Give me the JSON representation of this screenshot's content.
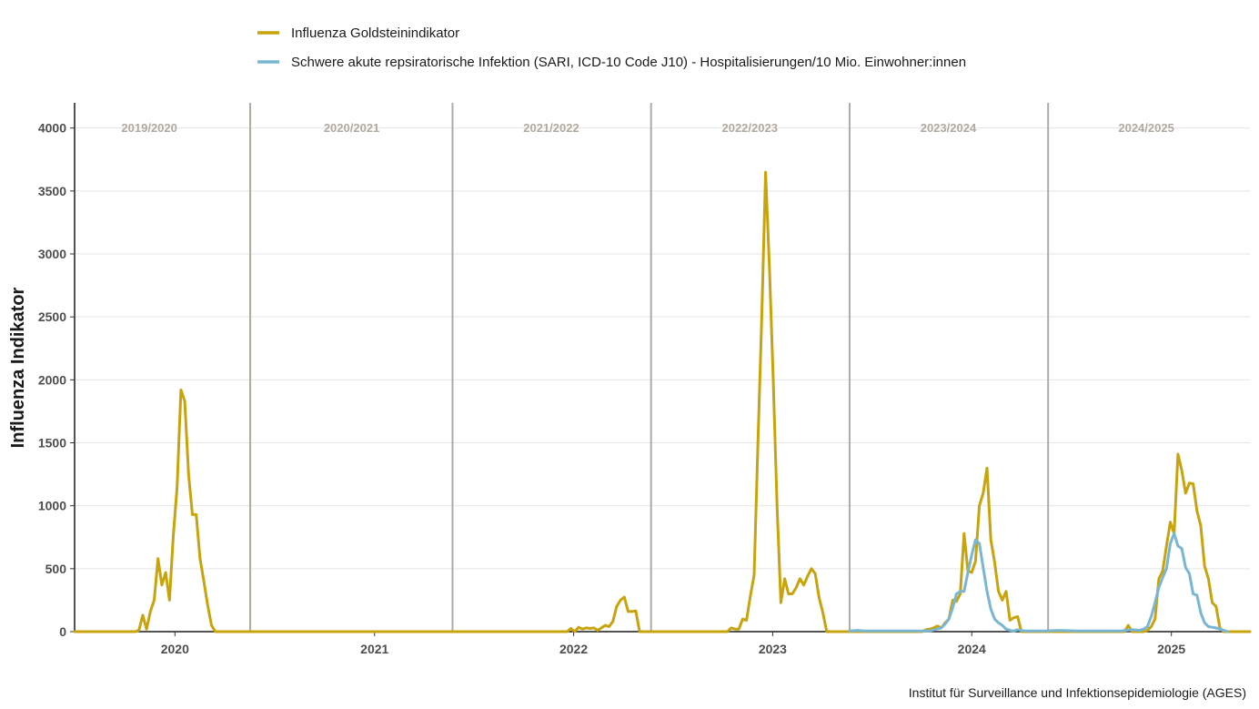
{
  "chart_data": {
    "type": "line",
    "title": "",
    "xlabel": "",
    "ylabel": "Influenza Indikator",
    "caption": "Institut für Surveillance und Infektionsepidemiologie (AGES)",
    "ylim": [
      0,
      4200
    ],
    "yticks": [
      0,
      500,
      1000,
      1500,
      2000,
      2500,
      3000,
      3500,
      4000
    ],
    "xlim": [
      "2019-07-01",
      "2025-05-25"
    ],
    "xticks": [
      {
        "date": "2020-01-01",
        "label": "2020"
      },
      {
        "date": "2021-01-01",
        "label": "2021"
      },
      {
        "date": "2022-01-01",
        "label": "2022"
      },
      {
        "date": "2023-01-01",
        "label": "2023"
      },
      {
        "date": "2024-01-01",
        "label": "2024"
      },
      {
        "date": "2025-01-01",
        "label": "2025"
      }
    ],
    "season_dividers": [
      "2020-05-18",
      "2021-05-24",
      "2022-05-23",
      "2023-05-22",
      "2024-05-20"
    ],
    "seasons": [
      {
        "label": "2019/2020",
        "date": "2019-11-15"
      },
      {
        "label": "2020/2021",
        "date": "2020-11-20"
      },
      {
        "label": "2021/2022",
        "date": "2021-11-21"
      },
      {
        "label": "2022/2023",
        "date": "2022-11-20"
      },
      {
        "label": "2023/2024",
        "date": "2023-11-19"
      },
      {
        "label": "2024/2025",
        "date": "2024-11-16"
      }
    ],
    "legend_position": "top",
    "grid": true,
    "series": [
      {
        "name": "Influenza Goldsteinindikator",
        "color": "#c9a30c",
        "points": [
          [
            "2019-07-01",
            0
          ],
          [
            "2019-10-20",
            0
          ],
          [
            "2019-10-27",
            10
          ],
          [
            "2019-11-03",
            130
          ],
          [
            "2019-11-10",
            20
          ],
          [
            "2019-11-17",
            160
          ],
          [
            "2019-11-24",
            250
          ],
          [
            "2019-12-01",
            580
          ],
          [
            "2019-12-08",
            370
          ],
          [
            "2019-12-15",
            470
          ],
          [
            "2019-12-22",
            250
          ],
          [
            "2019-12-29",
            760
          ],
          [
            "2020-01-05",
            1150
          ],
          [
            "2020-01-12",
            1920
          ],
          [
            "2020-01-19",
            1830
          ],
          [
            "2020-01-26",
            1250
          ],
          [
            "2020-02-02",
            930
          ],
          [
            "2020-02-09",
            930
          ],
          [
            "2020-02-16",
            580
          ],
          [
            "2020-02-23",
            400
          ],
          [
            "2020-03-01",
            210
          ],
          [
            "2020-03-08",
            50
          ],
          [
            "2020-03-15",
            0
          ],
          [
            "2021-12-20",
            0
          ],
          [
            "2021-12-27",
            25
          ],
          [
            "2022-01-03",
            0
          ],
          [
            "2022-01-10",
            35
          ],
          [
            "2022-01-17",
            20
          ],
          [
            "2022-01-24",
            30
          ],
          [
            "2022-01-31",
            25
          ],
          [
            "2022-02-07",
            30
          ],
          [
            "2022-02-14",
            10
          ],
          [
            "2022-02-21",
            30
          ],
          [
            "2022-02-28",
            50
          ],
          [
            "2022-03-07",
            40
          ],
          [
            "2022-03-14",
            80
          ],
          [
            "2022-03-21",
            200
          ],
          [
            "2022-03-28",
            250
          ],
          [
            "2022-04-04",
            275
          ],
          [
            "2022-04-11",
            160
          ],
          [
            "2022-04-18",
            160
          ],
          [
            "2022-04-25",
            165
          ],
          [
            "2022-05-02",
            0
          ],
          [
            "2022-10-10",
            0
          ],
          [
            "2022-10-17",
            30
          ],
          [
            "2022-10-24",
            20
          ],
          [
            "2022-10-31",
            20
          ],
          [
            "2022-11-07",
            100
          ],
          [
            "2022-11-14",
            90
          ],
          [
            "2022-11-21",
            280
          ],
          [
            "2022-11-28",
            450
          ],
          [
            "2022-12-05",
            1500
          ],
          [
            "2022-12-12",
            2500
          ],
          [
            "2022-12-19",
            3650
          ],
          [
            "2022-12-26",
            2900
          ],
          [
            "2023-01-02",
            2000
          ],
          [
            "2023-01-09",
            1000
          ],
          [
            "2023-01-16",
            230
          ],
          [
            "2023-01-23",
            420
          ],
          [
            "2023-01-30",
            300
          ],
          [
            "2023-02-06",
            300
          ],
          [
            "2023-02-13",
            350
          ],
          [
            "2023-02-20",
            420
          ],
          [
            "2023-02-27",
            370
          ],
          [
            "2023-03-06",
            440
          ],
          [
            "2023-03-13",
            500
          ],
          [
            "2023-03-20",
            460
          ],
          [
            "2023-03-27",
            270
          ],
          [
            "2023-04-03",
            150
          ],
          [
            "2023-04-10",
            0
          ],
          [
            "2023-10-02",
            0
          ],
          [
            "2023-10-09",
            15
          ],
          [
            "2023-10-16",
            20
          ],
          [
            "2023-10-23",
            30
          ],
          [
            "2023-10-30",
            45
          ],
          [
            "2023-11-06",
            30
          ],
          [
            "2023-11-13",
            70
          ],
          [
            "2023-11-20",
            100
          ],
          [
            "2023-11-27",
            250
          ],
          [
            "2023-12-04",
            240
          ],
          [
            "2023-12-11",
            300
          ],
          [
            "2023-12-18",
            780
          ],
          [
            "2023-12-25",
            480
          ],
          [
            "2024-01-01",
            470
          ],
          [
            "2024-01-08",
            560
          ],
          [
            "2024-01-15",
            1000
          ],
          [
            "2024-01-22",
            1100
          ],
          [
            "2024-01-29",
            1300
          ],
          [
            "2024-02-05",
            730
          ],
          [
            "2024-02-12",
            550
          ],
          [
            "2024-02-19",
            320
          ],
          [
            "2024-02-26",
            250
          ],
          [
            "2024-03-04",
            320
          ],
          [
            "2024-03-11",
            90
          ],
          [
            "2024-03-18",
            110
          ],
          [
            "2024-03-25",
            120
          ],
          [
            "2024-04-01",
            0
          ],
          [
            "2024-10-07",
            0
          ],
          [
            "2024-10-14",
            50
          ],
          [
            "2024-10-21",
            0
          ],
          [
            "2024-11-11",
            0
          ],
          [
            "2024-11-18",
            10
          ],
          [
            "2024-11-25",
            40
          ],
          [
            "2024-12-02",
            100
          ],
          [
            "2024-12-09",
            420
          ],
          [
            "2024-12-16",
            480
          ],
          [
            "2024-12-23",
            680
          ],
          [
            "2024-12-30",
            870
          ],
          [
            "2025-01-06",
            780
          ],
          [
            "2025-01-13",
            1410
          ],
          [
            "2025-01-20",
            1280
          ],
          [
            "2025-01-27",
            1100
          ],
          [
            "2025-02-03",
            1180
          ],
          [
            "2025-02-10",
            1175
          ],
          [
            "2025-02-17",
            960
          ],
          [
            "2025-02-24",
            840
          ],
          [
            "2025-03-03",
            520
          ],
          [
            "2025-03-10",
            420
          ],
          [
            "2025-03-17",
            230
          ],
          [
            "2025-03-24",
            200
          ],
          [
            "2025-03-31",
            30
          ],
          [
            "2025-04-07",
            0
          ],
          [
            "2025-05-25",
            0
          ]
        ]
      },
      {
        "name": "Schwere akute repsiratorische Infektion (SARI, ICD-10 Code J10) - Hospitalisierungen/10 Mio. Einwohner:innen",
        "color": "#78b6d4",
        "points": [
          [
            "2023-05-22",
            5
          ],
          [
            "2023-06-05",
            10
          ],
          [
            "2023-06-19",
            5
          ],
          [
            "2023-07-03",
            5
          ],
          [
            "2023-08-07",
            5
          ],
          [
            "2023-09-11",
            5
          ],
          [
            "2023-10-16",
            5
          ],
          [
            "2023-11-06",
            30
          ],
          [
            "2023-11-13",
            60
          ],
          [
            "2023-11-20",
            100
          ],
          [
            "2023-11-27",
            190
          ],
          [
            "2023-12-04",
            300
          ],
          [
            "2023-12-11",
            320
          ],
          [
            "2023-12-18",
            320
          ],
          [
            "2023-12-25",
            470
          ],
          [
            "2024-01-01",
            610
          ],
          [
            "2024-01-08",
            730
          ],
          [
            "2024-01-15",
            700
          ],
          [
            "2024-01-22",
            510
          ],
          [
            "2024-01-29",
            320
          ],
          [
            "2024-02-05",
            180
          ],
          [
            "2024-02-12",
            100
          ],
          [
            "2024-02-19",
            70
          ],
          [
            "2024-02-26",
            50
          ],
          [
            "2024-03-04",
            20
          ],
          [
            "2024-03-11",
            10
          ],
          [
            "2024-03-18",
            5
          ],
          [
            "2024-03-25",
            15
          ],
          [
            "2024-04-08",
            5
          ],
          [
            "2024-05-13",
            5
          ],
          [
            "2024-06-10",
            10
          ],
          [
            "2024-07-15",
            5
          ],
          [
            "2024-08-19",
            5
          ],
          [
            "2024-09-30",
            5
          ],
          [
            "2024-10-21",
            15
          ],
          [
            "2024-11-04",
            10
          ],
          [
            "2024-11-11",
            20
          ],
          [
            "2024-11-18",
            40
          ],
          [
            "2024-11-25",
            120
          ],
          [
            "2024-12-02",
            230
          ],
          [
            "2024-12-09",
            350
          ],
          [
            "2024-12-16",
            430
          ],
          [
            "2024-12-23",
            500
          ],
          [
            "2024-12-30",
            700
          ],
          [
            "2025-01-06",
            780
          ],
          [
            "2025-01-13",
            680
          ],
          [
            "2025-01-20",
            660
          ],
          [
            "2025-01-27",
            510
          ],
          [
            "2025-02-03",
            460
          ],
          [
            "2025-02-10",
            300
          ],
          [
            "2025-02-17",
            290
          ],
          [
            "2025-02-24",
            150
          ],
          [
            "2025-03-03",
            70
          ],
          [
            "2025-03-10",
            40
          ],
          [
            "2025-03-17",
            35
          ],
          [
            "2025-03-24",
            30
          ],
          [
            "2025-03-31",
            20
          ],
          [
            "2025-04-07",
            10
          ],
          [
            "2025-04-14",
            0
          ]
        ]
      }
    ]
  }
}
